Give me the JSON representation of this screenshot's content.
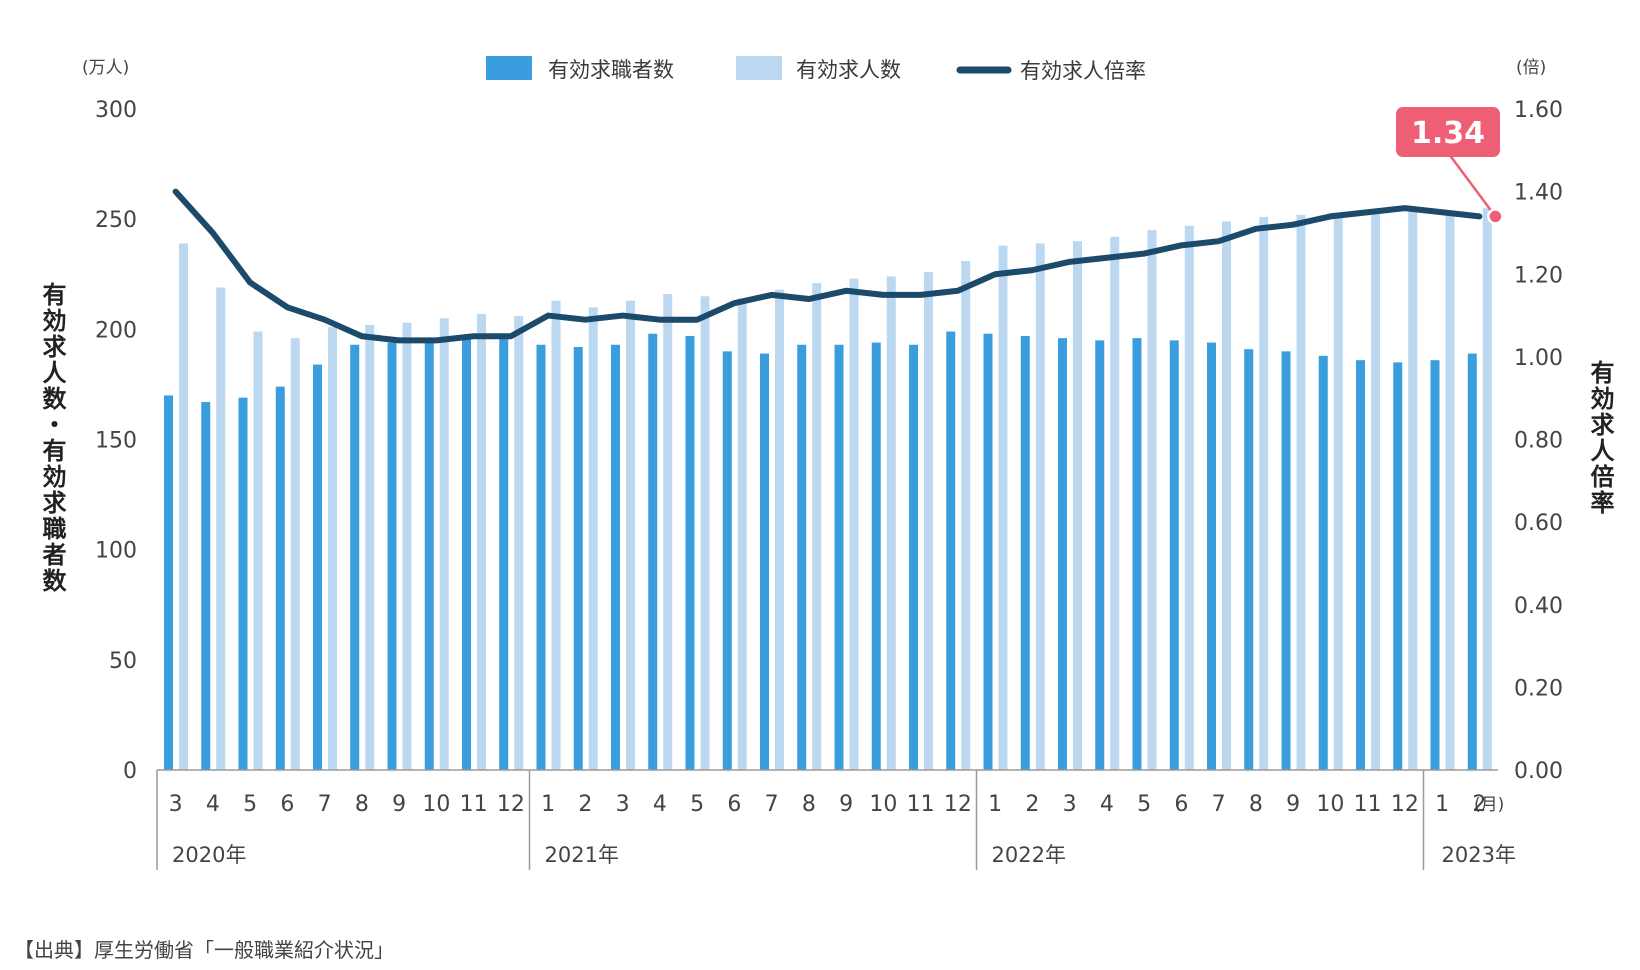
{
  "source": "【出典】厚生労働省「一般職業紹介状況」",
  "colors": {
    "seekers": "#3a9ede",
    "openings": "#bcd8f0",
    "ratio": "#1c4a6b",
    "callout": "#ee5e75",
    "axis": "#9a9a9a"
  },
  "chart_data": {
    "type": "bar",
    "combo_line_series": "有効求人倍率",
    "left_unit": "(万人)",
    "right_unit": "(倍)",
    "month_unit": "(月)",
    "left_axis_title": "有効求人数・有効求職者数",
    "right_axis_title": "有効求人倍率",
    "left_ylim": [
      0,
      300
    ],
    "left_ticks": [
      "0",
      "50",
      "100",
      "150",
      "200",
      "250",
      "300"
    ],
    "right_ylim": [
      0,
      1.6
    ],
    "right_ticks": [
      "0.00",
      "0.20",
      "0.40",
      "0.60",
      "0.80",
      "1.00",
      "1.20",
      "1.40",
      "1.60"
    ],
    "grid": false,
    "legend_position": "top-center",
    "categories": [
      "3",
      "4",
      "5",
      "6",
      "7",
      "8",
      "9",
      "10",
      "11",
      "12",
      "1",
      "2",
      "3",
      "4",
      "5",
      "6",
      "7",
      "8",
      "9",
      "10",
      "11",
      "12",
      "1",
      "2",
      "3",
      "4",
      "5",
      "6",
      "7",
      "8",
      "9",
      "10",
      "11",
      "12",
      "1",
      "2"
    ],
    "years": [
      {
        "label": "2020年",
        "start": 0,
        "end": 9
      },
      {
        "label": "2021年",
        "start": 10,
        "end": 21
      },
      {
        "label": "2022年",
        "start": 22,
        "end": 33
      },
      {
        "label": "2023年",
        "start": 34,
        "end": 35
      }
    ],
    "series": [
      {
        "name": "有効求職者数",
        "kind": "bar",
        "axis": "left",
        "values": [
          170,
          167,
          169,
          174,
          184,
          193,
          194,
          196,
          197,
          196,
          193,
          192,
          193,
          198,
          197,
          190,
          189,
          193,
          193,
          194,
          193,
          199,
          198,
          197,
          196,
          195,
          196,
          195,
          194,
          191,
          190,
          188,
          186,
          185,
          186,
          189
        ]
      },
      {
        "name": "有効求人数",
        "kind": "bar",
        "axis": "left",
        "values": [
          239,
          219,
          199,
          196,
          201,
          202,
          203,
          205,
          207,
          206,
          213,
          210,
          213,
          216,
          215,
          214,
          218,
          221,
          223,
          224,
          226,
          231,
          238,
          239,
          240,
          242,
          245,
          247,
          249,
          251,
          252,
          253,
          254,
          255,
          254,
          255
        ]
      },
      {
        "name": "有効求人倍率",
        "kind": "line",
        "axis": "right",
        "values": [
          1.4,
          1.3,
          1.18,
          1.12,
          1.09,
          1.05,
          1.04,
          1.04,
          1.05,
          1.05,
          1.1,
          1.09,
          1.1,
          1.09,
          1.09,
          1.13,
          1.15,
          1.14,
          1.16,
          1.15,
          1.15,
          1.16,
          1.2,
          1.21,
          1.23,
          1.24,
          1.25,
          1.27,
          1.28,
          1.31,
          1.32,
          1.34,
          1.35,
          1.36,
          1.35,
          1.34
        ]
      }
    ],
    "annotation": {
      "text": "1.34",
      "index": 35
    }
  }
}
